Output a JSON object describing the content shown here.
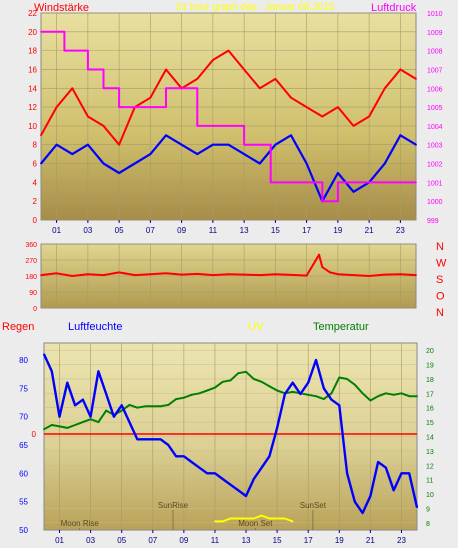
{
  "chart_data": [
    {
      "type": "line",
      "title": "24 hour graph day : Januar 08.2015",
      "left_axis_label": "Windstärke",
      "right_axis_label": "Luftdruck",
      "ylim": [
        0,
        22
      ],
      "y_ticks": [
        "0",
        "2",
        "4",
        "6",
        "8",
        "10",
        "12",
        "14",
        "16",
        "18",
        "20",
        "22"
      ],
      "y2lim": [
        999,
        1010
      ],
      "y2_ticks": [
        "999",
        "1000",
        "1001",
        "1002",
        "1003",
        "1004",
        "1005",
        "1006",
        "1007",
        "1008",
        "1009",
        "1010"
      ],
      "x_ticks": [
        "01",
        "03",
        "05",
        "07",
        "09",
        "11",
        "13",
        "15",
        "17",
        "19",
        "21",
        "23"
      ],
      "xlim": [
        0,
        24
      ],
      "series": [
        {
          "name": "Windstärke",
          "color": "#ff0000",
          "x": [
            0,
            1,
            2,
            3,
            4,
            5,
            6,
            7,
            8,
            9,
            10,
            11,
            12,
            13,
            14,
            15,
            16,
            17,
            18,
            19,
            20,
            21,
            22,
            23,
            24
          ],
          "values": [
            9,
            12,
            14,
            11,
            10,
            8,
            12,
            13,
            16,
            14,
            15,
            17,
            18,
            16,
            14,
            15,
            13,
            12,
            11,
            12,
            10,
            11,
            14,
            16,
            15
          ]
        },
        {
          "name": "Windstärke average",
          "color": "#0000ff",
          "x": [
            0,
            1,
            2,
            3,
            4,
            5,
            6,
            7,
            8,
            9,
            10,
            11,
            12,
            13,
            14,
            15,
            16,
            17,
            18,
            19,
            20,
            21,
            22,
            23,
            24
          ],
          "values": [
            6,
            8,
            7,
            8,
            6,
            5,
            6,
            7,
            9,
            8,
            7,
            8,
            8,
            7,
            6,
            8,
            9,
            6,
            2,
            5,
            3,
            4,
            6,
            9,
            8
          ]
        },
        {
          "name": "Luftdruck",
          "color": "#ff00ff",
          "x": [
            0,
            1.5,
            1.5,
            3,
            3,
            4,
            4,
            5,
            5,
            8,
            8,
            10,
            10,
            13,
            13,
            14.7,
            14.7,
            15,
            15,
            18,
            18,
            19,
            19,
            24
          ],
          "values": [
            1009,
            1009,
            1008,
            1008,
            1007,
            1007,
            1006,
            1006,
            1005,
            1005,
            1006,
            1006,
            1004,
            1004,
            1003,
            1003,
            1001,
            1001,
            1001,
            1001,
            1000,
            1000,
            1001,
            1001
          ]
        }
      ]
    },
    {
      "type": "line",
      "ylim": [
        0,
        360
      ],
      "y_ticks": [
        "0",
        "90",
        "180",
        "270",
        "360"
      ],
      "right_labels": [
        "N",
        "W",
        "S",
        "O",
        "N"
      ],
      "xlim": [
        0,
        24
      ],
      "series": [
        {
          "name": "Windrichtung",
          "color": "#ff0000",
          "x": [
            0,
            1,
            2,
            3,
            4,
            5,
            6,
            7,
            8,
            9,
            10,
            11,
            12,
            13,
            14,
            15,
            16,
            17,
            17.8,
            18,
            18.5,
            19,
            20,
            21,
            22,
            23,
            24
          ],
          "values": [
            185,
            195,
            180,
            190,
            185,
            200,
            185,
            190,
            195,
            188,
            192,
            185,
            190,
            188,
            185,
            190,
            186,
            182,
            300,
            230,
            200,
            190,
            185,
            180,
            188,
            190,
            185
          ]
        }
      ]
    },
    {
      "type": "line",
      "left_axis_label": "Regen",
      "humidity_label": "Luftfeuchte",
      "uv_label": "UV",
      "temperature_label": "Temperatur",
      "ylim": [
        50,
        83
      ],
      "y_ticks": [
        "50",
        "55",
        "60",
        "65",
        "70",
        "75",
        "80"
      ],
      "y2lim": [
        7.5,
        20.5
      ],
      "y2_ticks": [
        "8",
        "9",
        "10",
        "11",
        "12",
        "13",
        "14",
        "15",
        "16",
        "17",
        "18",
        "19",
        "20"
      ],
      "rain_zero_label": "0",
      "x_ticks": [
        "01",
        "03",
        "05",
        "07",
        "09",
        "11",
        "13",
        "15",
        "17",
        "19",
        "21",
        "23"
      ],
      "xlim": [
        0,
        24
      ],
      "series": [
        {
          "name": "Luftfeuchte",
          "color": "#0000ff",
          "x": [
            0,
            0.5,
            1,
            1.5,
            2,
            2.5,
            3,
            3.5,
            4,
            4.5,
            5,
            5.5,
            6,
            6.5,
            7,
            7.5,
            8,
            8.5,
            9,
            9.5,
            10,
            10.5,
            11,
            11.5,
            12,
            12.5,
            13,
            13.5,
            14,
            14.5,
            15,
            15.5,
            16,
            16.5,
            17,
            17.5,
            18,
            18.5,
            19,
            19.5,
            20,
            20.5,
            21,
            21.5,
            22,
            22.5,
            23,
            23.5,
            24
          ],
          "values": [
            81,
            78,
            70,
            76,
            72,
            73,
            70,
            78,
            74,
            70,
            72,
            69,
            66,
            66,
            66,
            66,
            65,
            63,
            63,
            62,
            61,
            60,
            60,
            59,
            58,
            57,
            56,
            59,
            61,
            63,
            68,
            74,
            76,
            74,
            76,
            80,
            75,
            73,
            72,
            60,
            55,
            53,
            56,
            62,
            61,
            57,
            60,
            60,
            54
          ]
        },
        {
          "name": "Temperatur",
          "color": "#008000",
          "x": [
            0,
            0.5,
            1,
            1.5,
            2,
            2.5,
            3,
            3.5,
            4,
            4.5,
            5,
            5.5,
            6,
            6.5,
            7,
            7.5,
            8,
            8.5,
            9,
            9.5,
            10,
            10.5,
            11,
            11.5,
            12,
            12.5,
            13,
            13.5,
            14,
            14.5,
            15,
            15.5,
            16,
            16.5,
            17,
            17.5,
            18,
            18.5,
            19,
            19.5,
            20,
            20.5,
            21,
            21.5,
            22,
            22.5,
            23,
            23.5,
            24
          ],
          "values": [
            14.5,
            14.8,
            14.7,
            14.6,
            14.8,
            15,
            15.2,
            15,
            15.8,
            15.5,
            15.8,
            16.2,
            16,
            16.1,
            16.1,
            16.1,
            16.2,
            16.6,
            16.7,
            16.9,
            17.0,
            17.2,
            17.4,
            17.8,
            17.9,
            18.4,
            18.5,
            18.0,
            17.8,
            17.5,
            17.2,
            17.0,
            17.1,
            17.0,
            16.9,
            16.8,
            16.6,
            17.0,
            18.1,
            18.0,
            17.6,
            17.0,
            16.5,
            16.8,
            17.0,
            16.9,
            17.0,
            16.8,
            16.8
          ]
        },
        {
          "name": "UV",
          "color": "#ffff00",
          "x": [
            11,
            11.5,
            12,
            12.5,
            13,
            13.5,
            14,
            14.5,
            15,
            15.5,
            16
          ],
          "values": [
            8.1,
            8.1,
            8.3,
            8.3,
            8.3,
            8.3,
            8.5,
            8.3,
            8.3,
            8.3,
            8.1
          ]
        }
      ],
      "annotations": [
        {
          "label": "SunRise",
          "x": 8.3
        },
        {
          "label": "SunSet",
          "x": 17.3
        },
        {
          "label": "Moon Rise",
          "x": 2.3
        },
        {
          "label": "Moon Set",
          "x": 13.6
        }
      ]
    }
  ]
}
